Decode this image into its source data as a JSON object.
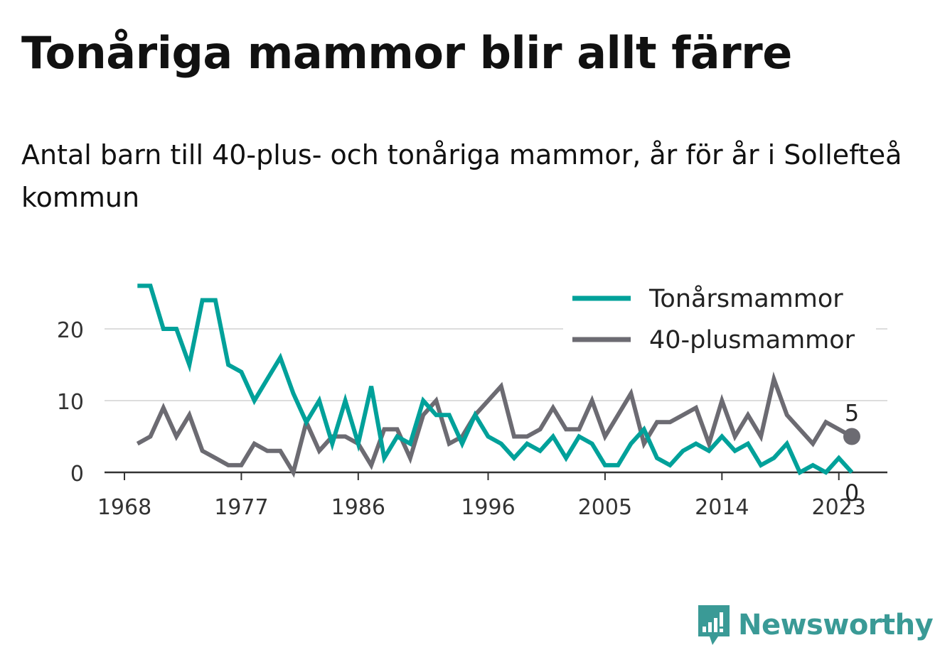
{
  "title": "Tonåriga mammor blir allt färre",
  "subtitle": "Antal barn till 40-plus- och tonåriga mammor, år för år i Sollefteå kommun",
  "brand": {
    "name": "Newsworthy",
    "color": "#3a9a96",
    "icon": "newsworthy-logo-icon"
  },
  "chart_data": {
    "type": "line",
    "x": [
      1969,
      1970,
      1971,
      1972,
      1973,
      1974,
      1975,
      1976,
      1977,
      1978,
      1979,
      1980,
      1981,
      1982,
      1983,
      1984,
      1985,
      1986,
      1987,
      1988,
      1989,
      1990,
      1991,
      1992,
      1993,
      1994,
      1995,
      1996,
      1997,
      1998,
      1999,
      2000,
      2001,
      2002,
      2003,
      2004,
      2005,
      2006,
      2007,
      2008,
      2009,
      2010,
      2011,
      2012,
      2013,
      2014,
      2015,
      2016,
      2017,
      2018,
      2019,
      2020,
      2021,
      2022,
      2023,
      2024
    ],
    "series": [
      {
        "name": "Tonårsmammor",
        "color": "#00a19a",
        "values": [
          26,
          26,
          20,
          20,
          15,
          24,
          24,
          15,
          14,
          10,
          13,
          16,
          11,
          7,
          10,
          4,
          10,
          4,
          12,
          2,
          5,
          4,
          10,
          8,
          8,
          4,
          8,
          5,
          4,
          2,
          4,
          3,
          5,
          2,
          5,
          4,
          1,
          1,
          4,
          6,
          2,
          1,
          3,
          4,
          3,
          5,
          3,
          4,
          1,
          2,
          4,
          0,
          1,
          0,
          2,
          0
        ]
      },
      {
        "name": "40-plusmammor",
        "color": "#6c6b72",
        "values": [
          4,
          5,
          9,
          5,
          8,
          3,
          2,
          1,
          1,
          4,
          3,
          3,
          0,
          7,
          3,
          5,
          5,
          4,
          1,
          6,
          6,
          2,
          8,
          10,
          4,
          5,
          8,
          10,
          12,
          5,
          5,
          6,
          9,
          6,
          6,
          10,
          5,
          8,
          11,
          4,
          7,
          7,
          8,
          9,
          4,
          10,
          5,
          8,
          5,
          13,
          8,
          6,
          4,
          7,
          6,
          5
        ]
      }
    ],
    "xticks": [
      "1968",
      "1977",
      "1986",
      "1996",
      "2005",
      "2014",
      "2023"
    ],
    "yticks": [
      "0",
      "10",
      "20"
    ],
    "ylim": [
      0,
      26
    ],
    "grid": true,
    "legend_position": "top-right",
    "end_labels": {
      "gray": "5",
      "teal": "0"
    }
  }
}
